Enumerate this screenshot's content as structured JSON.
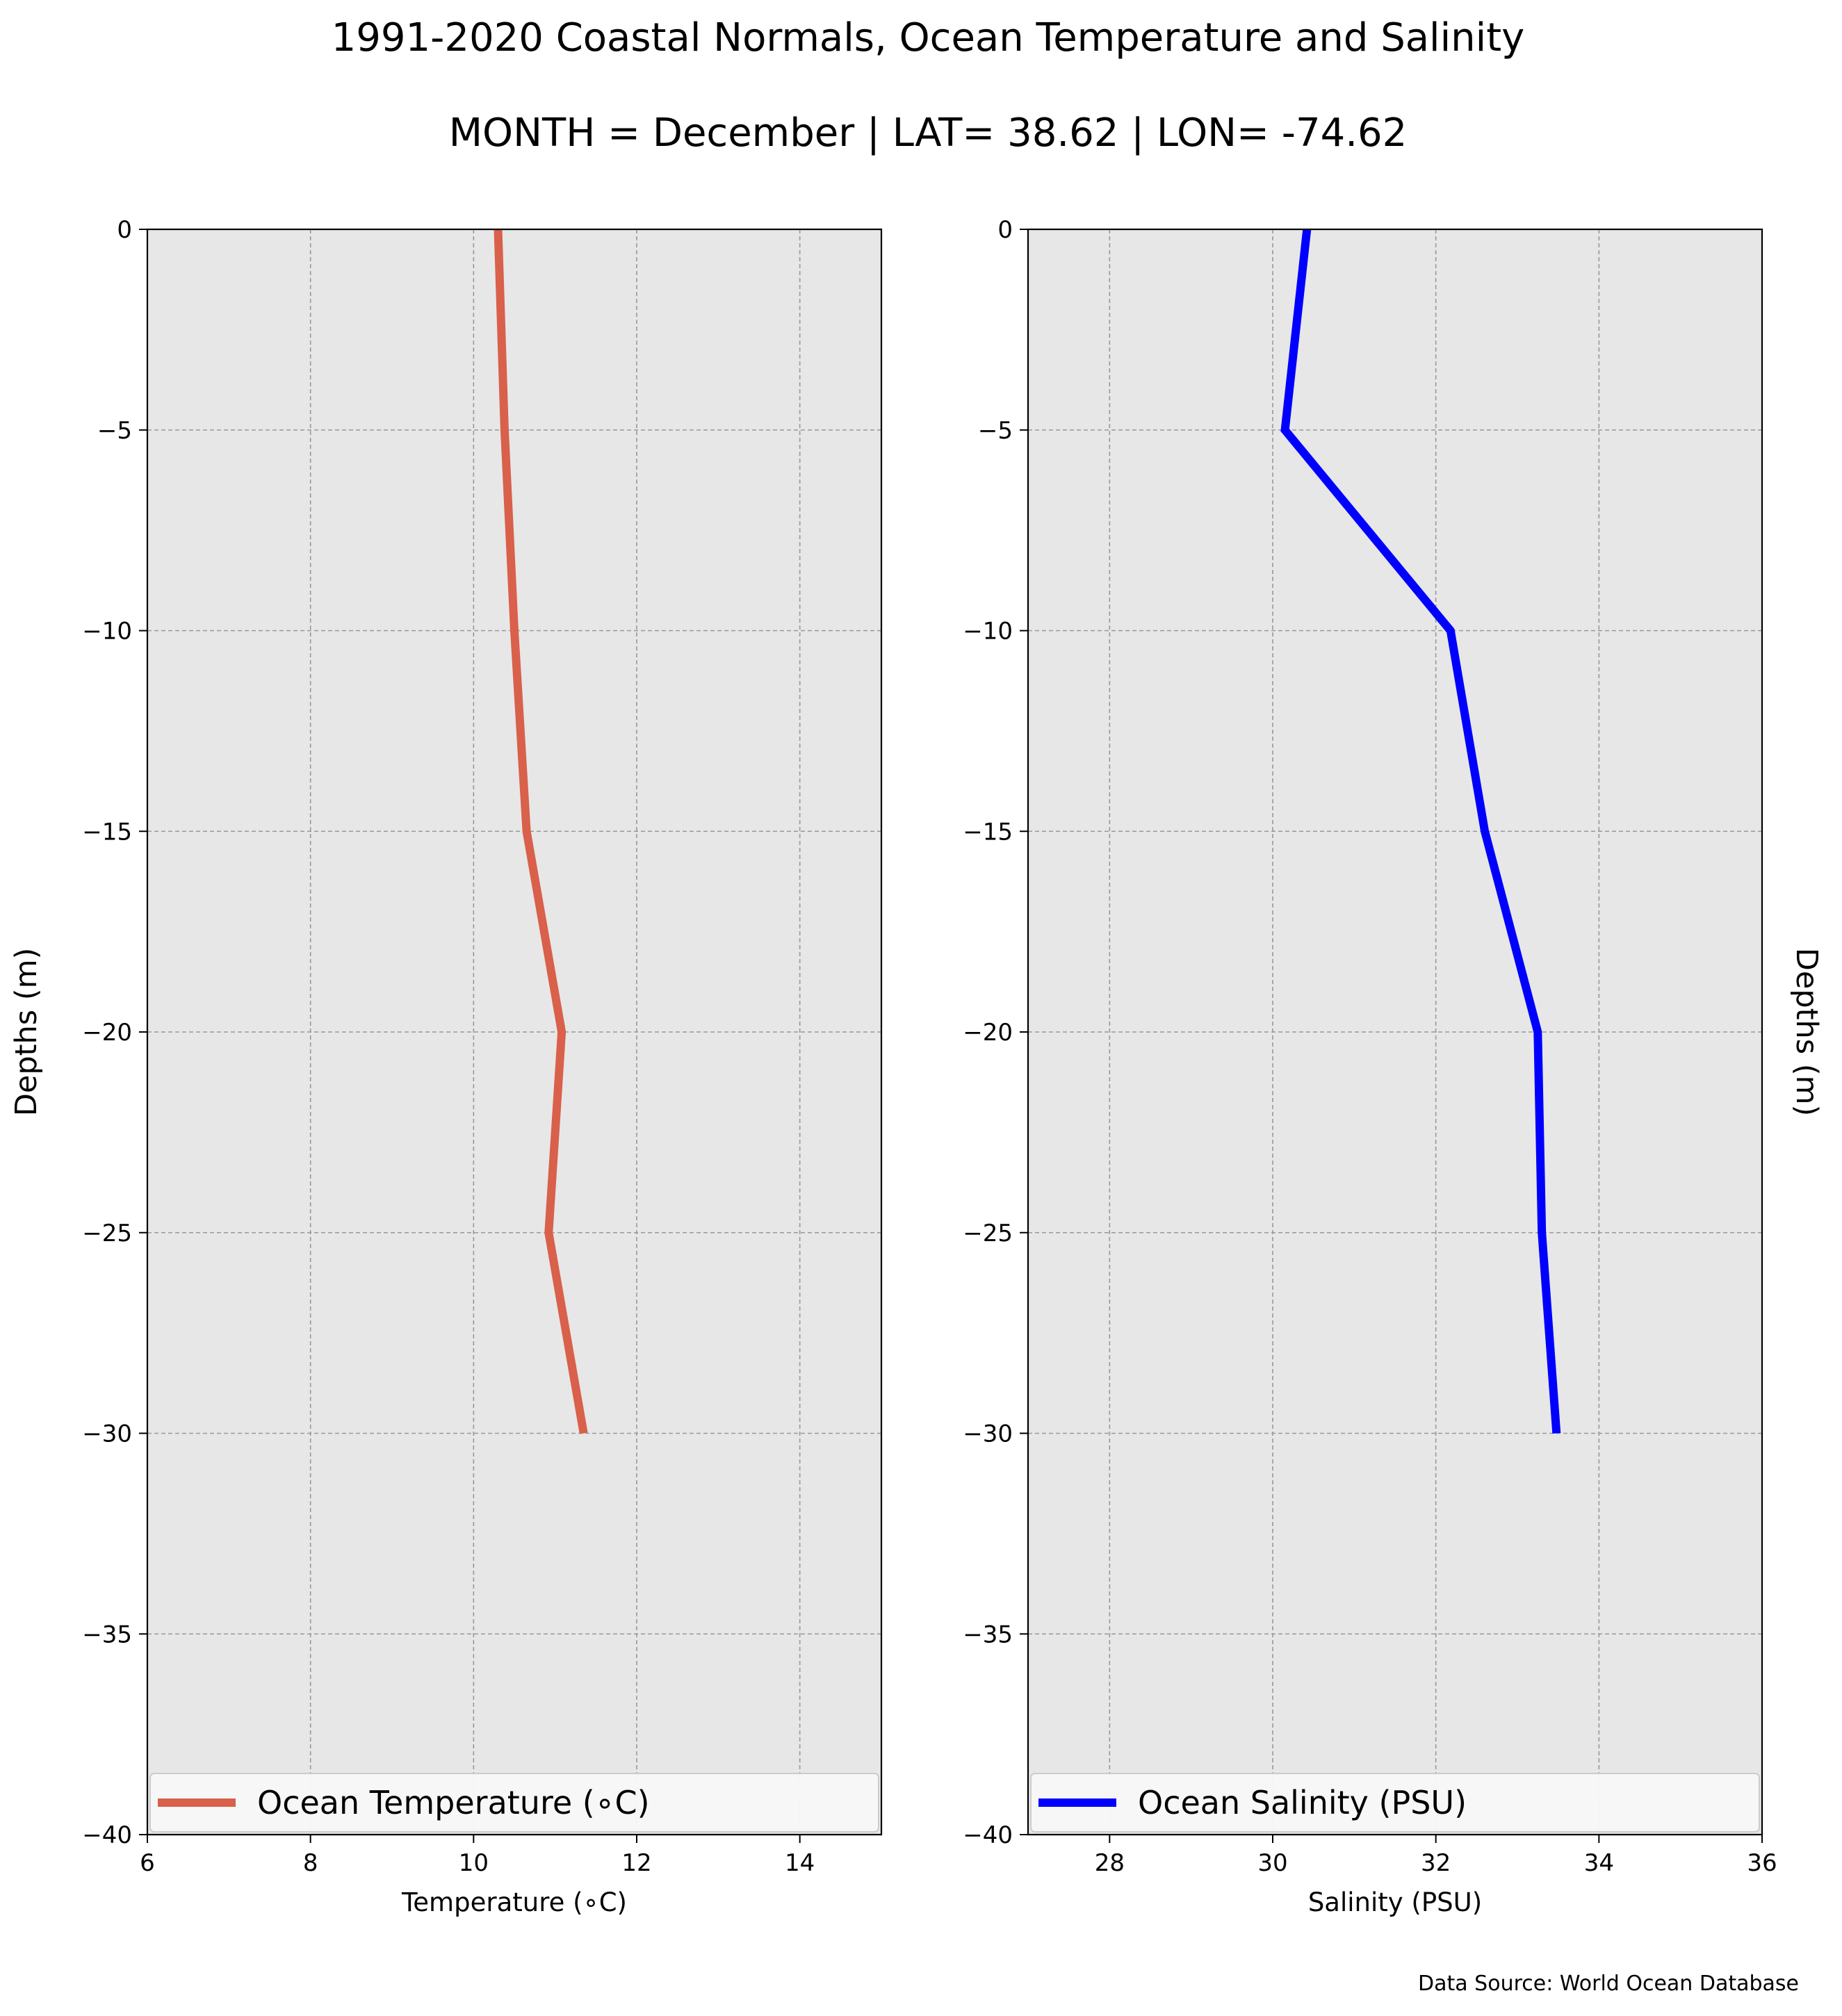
{
  "title": "1991-2020 Coastal Normals, Ocean Temperature and Salinity",
  "subtitle": "MONTH = December | LAT= 38.62 | LON= -74.62",
  "source": "Data Source: World Ocean Database",
  "chart_data": [
    {
      "type": "line",
      "xlabel": "Temperature (∘C)",
      "ylabel": "Depths (m)",
      "xlim": [
        6,
        15
      ],
      "ylim": [
        -40,
        0
      ],
      "xticks": [
        6,
        8,
        10,
        12,
        14
      ],
      "xtick_labels": [
        "6",
        "8",
        "10",
        "12",
        "14"
      ],
      "yticks": [
        0,
        -5,
        -10,
        -15,
        -20,
        -25,
        -30,
        -35,
        -40
      ],
      "ytick_labels": [
        "0",
        "−5",
        "−10",
        "−15",
        "−20",
        "−25",
        "−30",
        "−35",
        "−40"
      ],
      "grid": true,
      "legend_position": "bottom",
      "series": [
        {
          "name": "Ocean Temperature (∘C)",
          "color": "#d9604a",
          "x": [
            10.3,
            10.38,
            10.5,
            10.65,
            11.08,
            10.92,
            11.35
          ],
          "y": [
            0,
            -5,
            -10,
            -15,
            -20,
            -25,
            -30
          ]
        }
      ]
    },
    {
      "type": "line",
      "xlabel": "Salinity (PSU)",
      "ylabel": "Depths (m)",
      "xlim": [
        27,
        36
      ],
      "ylim": [
        -40,
        0
      ],
      "xticks": [
        28,
        30,
        32,
        34,
        36
      ],
      "xtick_labels": [
        "28",
        "30",
        "32",
        "34",
        "36"
      ],
      "yticks": [
        0,
        -5,
        -10,
        -15,
        -20,
        -25,
        -30,
        -35,
        -40
      ],
      "ytick_labels": [
        "0",
        "−5",
        "−10",
        "−15",
        "−20",
        "−25",
        "−30",
        "−35",
        "−40"
      ],
      "grid": true,
      "legend_position": "bottom",
      "series": [
        {
          "name": "Ocean Salinity (PSU)",
          "color": "#0000ff",
          "x": [
            30.42,
            30.15,
            32.18,
            32.6,
            33.25,
            33.3,
            33.48
          ],
          "y": [
            0,
            -5,
            -10,
            -15,
            -20,
            -25,
            -30
          ]
        }
      ]
    }
  ]
}
